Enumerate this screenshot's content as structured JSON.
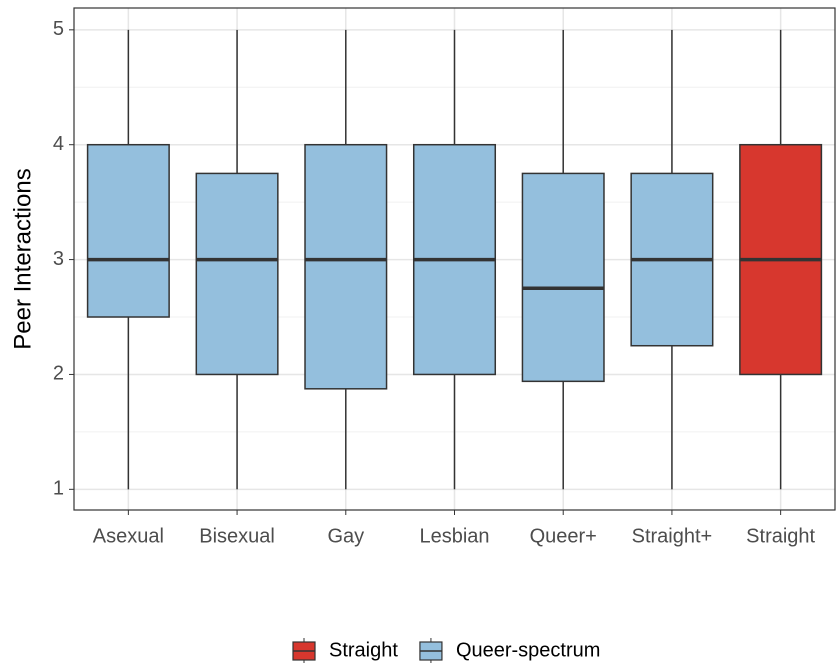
{
  "chart_data": {
    "type": "box",
    "y_label": "Peer Interactions",
    "categories": [
      "Asexual",
      "Bisexual",
      "Gay",
      "Lesbian",
      "Queer+",
      "Straight+",
      "Straight"
    ],
    "boxes": [
      {
        "min": 1,
        "q1": 2.5,
        "median": 3,
        "q3": 4,
        "max": 5,
        "group": "Queer-spectrum"
      },
      {
        "min": 1,
        "q1": 2,
        "median": 3,
        "q3": 3.75,
        "max": 5,
        "group": "Queer-spectrum"
      },
      {
        "min": 1,
        "q1": 1.875,
        "median": 3,
        "q3": 4,
        "max": 5,
        "group": "Queer-spectrum"
      },
      {
        "min": 1,
        "q1": 2,
        "median": 3,
        "q3": 4,
        "max": 5,
        "group": "Queer-spectrum"
      },
      {
        "min": 1,
        "q1": 1.94,
        "median": 2.75,
        "q3": 3.75,
        "max": 5,
        "group": "Queer-spectrum"
      },
      {
        "min": 1,
        "q1": 2.25,
        "median": 3,
        "q3": 3.75,
        "max": 5,
        "group": "Queer-spectrum"
      },
      {
        "min": 1,
        "q1": 2,
        "median": 3,
        "q3": 4,
        "max": 5,
        "group": "Straight"
      }
    ],
    "legend": [
      {
        "name": "Straight",
        "color": "#d7372e"
      },
      {
        "name": "Queer-spectrum",
        "color": "#94bfdd"
      }
    ],
    "ylim": [
      0.82,
      5.19
    ],
    "yticks": [
      1,
      2,
      3,
      4,
      5
    ],
    "minor_grid": [
      1.5,
      2.5,
      3.5,
      4.5
    ],
    "grid": true,
    "legend_position": "bottom"
  }
}
